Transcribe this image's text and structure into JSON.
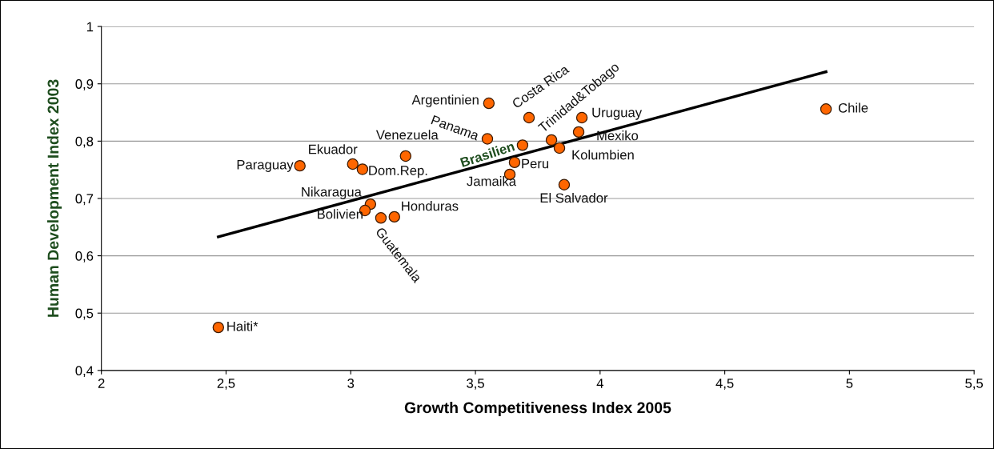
{
  "chart_data": {
    "type": "scatter",
    "xlabel": "Growth Competitiveness Index 2005",
    "ylabel": "Human Development Index 2003",
    "series": [
      {
        "color": "#ff6600",
        "marker": "circle",
        "x": [
          2.469,
          2.796,
          3.008,
          3.047,
          3.22,
          3.079,
          3.057,
          3.121,
          3.175,
          3.554,
          3.548,
          3.715,
          3.689,
          3.657,
          3.638,
          3.805,
          3.837,
          3.856,
          3.927,
          3.914,
          4.906
        ],
        "values": [
          0.475,
          0.757,
          0.76,
          0.751,
          0.774,
          0.69,
          0.679,
          0.666,
          0.668,
          0.866,
          0.804,
          0.841,
          0.793,
          0.763,
          0.742,
          0.802,
          0.788,
          0.724,
          0.841,
          0.816,
          0.856
        ]
      },
      {
        "type": "line",
        "color": "#000000",
        "x": [
          2.469,
          4.906
        ],
        "values": [
          0.633,
          0.921
        ]
      }
    ],
    "annotations": [
      {
        "text": "Haiti*",
        "x": 2.469,
        "y": 0.475
      },
      {
        "text": "Paraguay",
        "x": 2.796,
        "y": 0.757
      },
      {
        "text": "Ekuador",
        "x": 3.008,
        "y": 0.76
      },
      {
        "text": "Dom.Rep.",
        "x": 3.047,
        "y": 0.751
      },
      {
        "text": "Venezuela",
        "x": 3.22,
        "y": 0.774
      },
      {
        "text": "Nikaragua",
        "x": 3.079,
        "y": 0.69
      },
      {
        "text": "Bolivien",
        "x": 3.057,
        "y": 0.679
      },
      {
        "text": "Guatemala",
        "x": 3.121,
        "y": 0.666
      },
      {
        "text": "Honduras",
        "x": 3.175,
        "y": 0.668
      },
      {
        "text": "Argentinien",
        "x": 3.554,
        "y": 0.866
      },
      {
        "text": "Panama",
        "x": 3.548,
        "y": 0.804
      },
      {
        "text": "Costa Rica",
        "x": 3.715,
        "y": 0.841
      },
      {
        "text": "Brasilien",
        "x": 3.689,
        "y": 0.793
      },
      {
        "text": "Peru",
        "x": 3.657,
        "y": 0.763
      },
      {
        "text": "Jamaika",
        "x": 3.638,
        "y": 0.742
      },
      {
        "text": "Trinidad&Tobago",
        "x": 3.805,
        "y": 0.802
      },
      {
        "text": "Kolumbien",
        "x": 3.837,
        "y": 0.788
      },
      {
        "text": "El Salvador",
        "x": 3.856,
        "y": 0.724
      },
      {
        "text": "Uruguay",
        "x": 3.927,
        "y": 0.841
      },
      {
        "text": "Mexiko",
        "x": 3.914,
        "y": 0.816
      },
      {
        "text": "Chile",
        "x": 4.906,
        "y": 0.856
      }
    ],
    "xlim": [
      2,
      5.5
    ],
    "xticks": [
      2,
      {
        "value": 2.5,
        "label": "2,5"
      },
      3,
      {
        "value": 3.5,
        "label": "3,5"
      },
      4,
      {
        "value": 4.5,
        "label": "4,5"
      },
      5,
      {
        "value": 5.5,
        "label": "5,5"
      }
    ],
    "ylim": [
      0.4,
      1
    ],
    "yticks": [
      {
        "value": 0.4,
        "label": "0,4"
      },
      {
        "value": 0.5,
        "label": "0,5"
      },
      {
        "value": 0.6,
        "label": "0,6"
      },
      {
        "value": 0.7,
        "label": "0,7"
      },
      {
        "value": 0.8,
        "label": "0,8"
      },
      {
        "value": 0.9,
        "label": "0,9"
      },
      1
    ],
    "grid": "y"
  }
}
